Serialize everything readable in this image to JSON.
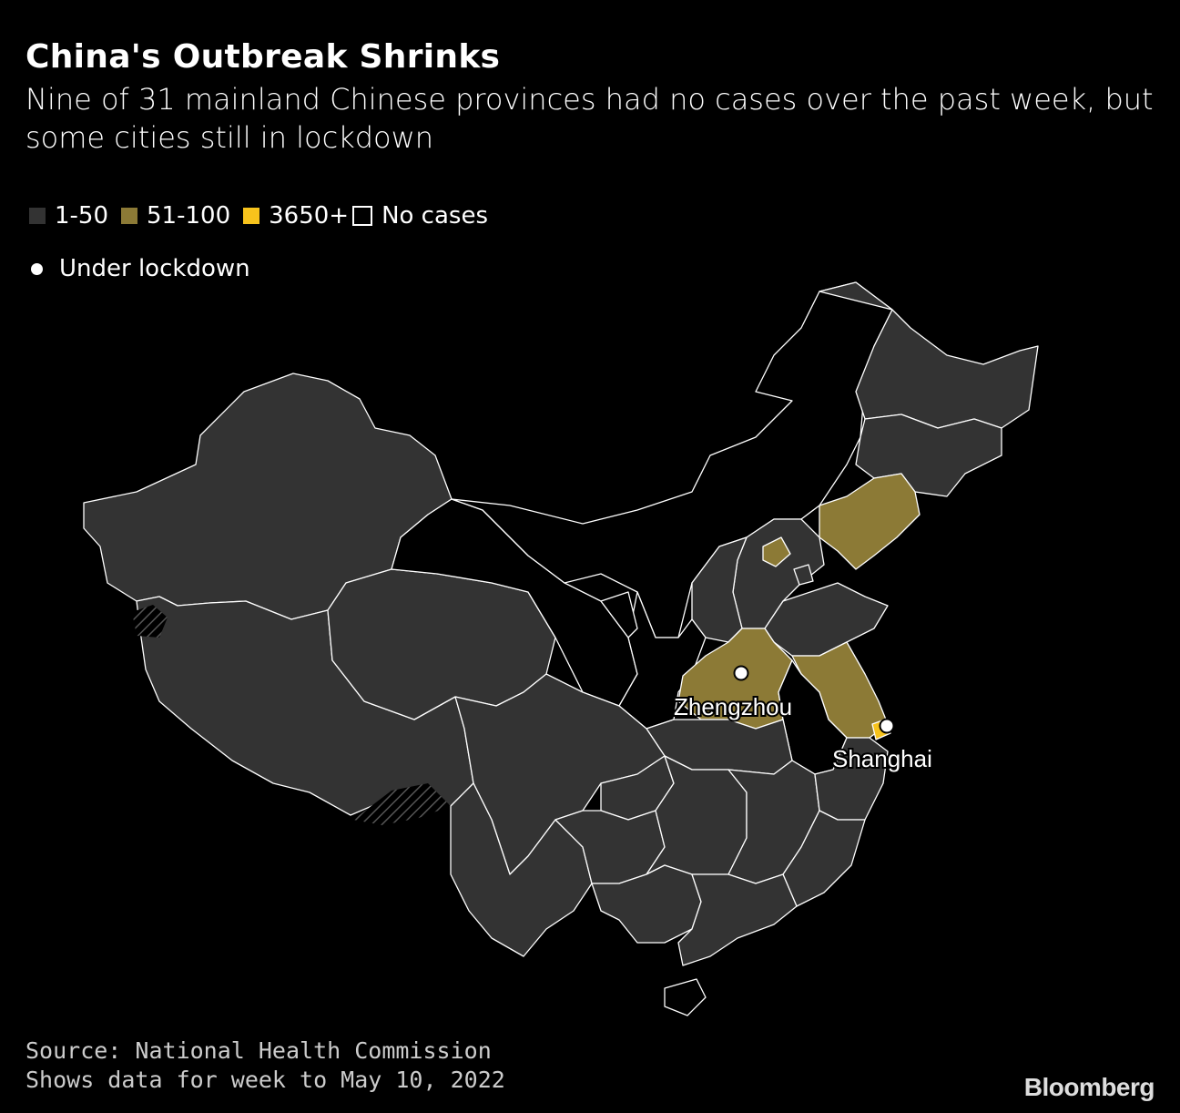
{
  "title": "China's Outbreak Shrinks",
  "subtitle": "Nine of 31 mainland Chinese provinces had no cases over the past week, but some cities still in lockdown",
  "legend": {
    "items": [
      {
        "label": "1-50",
        "color": "#333333"
      },
      {
        "label": "51-100",
        "color": "#8c7a36"
      },
      {
        "label": "3650+",
        "color": "#f7c31c"
      },
      {
        "label": "No cases",
        "color": "#000000"
      }
    ],
    "lockdown_label": "Under lockdown"
  },
  "cities": {
    "zhengzhou": "Zhengzhou",
    "shanghai": "Shanghai"
  },
  "colors": {
    "low": "#333333",
    "mid": "#8c7a36",
    "high": "#f7c31c",
    "none": "#000000",
    "border": "#ffffff"
  },
  "footer": {
    "source": "Source: National Health Commission",
    "note": "Shows data for week to May 10, 2022"
  },
  "brand": "Bloomberg"
}
